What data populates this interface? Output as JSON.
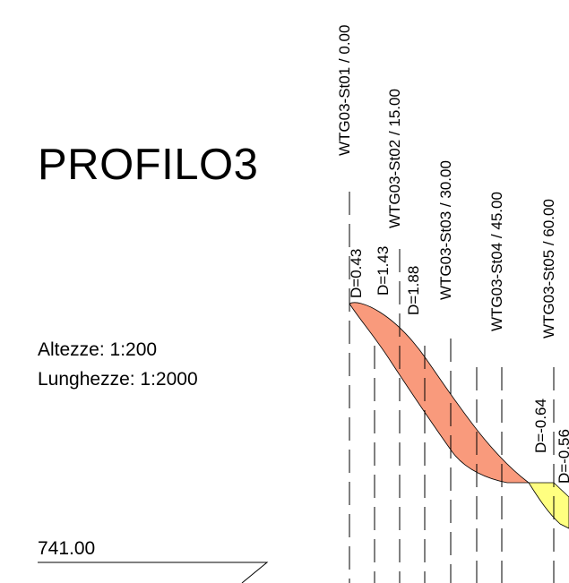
{
  "title": "PROFILO3",
  "scales": {
    "heights": "Altezze:  1:200",
    "lengths": "Lunghezze: 1:2000"
  },
  "datum": {
    "value": "741.00"
  },
  "stations": [
    {
      "label": "WTG03-St01 / 0.00"
    },
    {
      "label": "WTG03-St02 / 15.00"
    },
    {
      "label": "WTG03-St03 / 30.00"
    },
    {
      "label": "WTG03-St04 / 45.00"
    },
    {
      "label": "WTG03-St05 / 60.00"
    }
  ],
  "depths": [
    {
      "label": "D=0.43"
    },
    {
      "label": "D=1.43"
    },
    {
      "label": "D=1.88"
    },
    {
      "label": "D=-0.64"
    },
    {
      "label": "D=-0.56"
    }
  ],
  "colors": {
    "cut_fill": "#F99A7C",
    "fill_fill": "#FFFF80",
    "line": "#000000"
  }
}
